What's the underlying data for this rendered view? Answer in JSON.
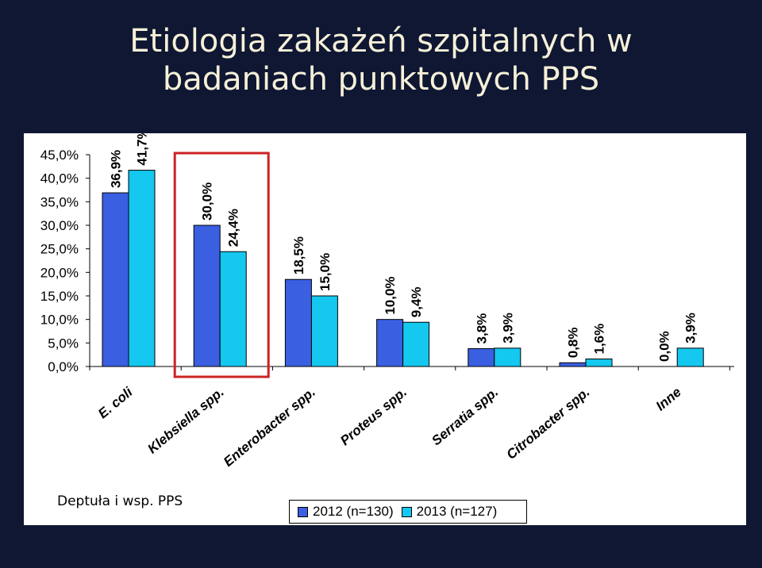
{
  "slide": {
    "title_line1": "Etiologia zakażeń szpitalnych w",
    "title_line2": "badaniach punktowych PPS",
    "source": "Deptuła i wsp. PPS",
    "background_color": "#0f1733"
  },
  "chart_data": {
    "type": "bar",
    "title": "",
    "xlabel": "",
    "ylabel": "",
    "ylim": [
      0,
      45
    ],
    "y_ticks": [
      "0,0%",
      "5,0%",
      "10,0%",
      "15,0%",
      "20,0%",
      "25,0%",
      "30,0%",
      "35,0%",
      "40,0%",
      "45,0%"
    ],
    "grid": false,
    "legend_position": "bottom",
    "categories": [
      "E. coli",
      "Klebsiella spp.",
      "Enterobacter spp.",
      "Proteus spp.",
      "Serratia spp.",
      "Citrobacter spp.",
      "Inne"
    ],
    "series": [
      {
        "name": "2012 (n=130)",
        "color": "#3a5fe0",
        "values": [
          36.9,
          30.0,
          18.5,
          10.0,
          3.8,
          0.8,
          0.0
        ],
        "labels": [
          "36,9%",
          "30,0%",
          "18,5%",
          "10,0%",
          "3,8%",
          "0,8%",
          "0,0%"
        ]
      },
      {
        "name": "2013 (n=127)",
        "color": "#14c8ef",
        "values": [
          41.7,
          24.4,
          15.0,
          9.4,
          3.9,
          1.6,
          3.9
        ],
        "labels": [
          "41,7%",
          "24,4%",
          "15,0%",
          "9,4%",
          "3,9%",
          "1,6%",
          "3,9%"
        ]
      }
    ],
    "highlight": {
      "category": "Klebsiella spp.",
      "color": "#cc2222"
    }
  }
}
